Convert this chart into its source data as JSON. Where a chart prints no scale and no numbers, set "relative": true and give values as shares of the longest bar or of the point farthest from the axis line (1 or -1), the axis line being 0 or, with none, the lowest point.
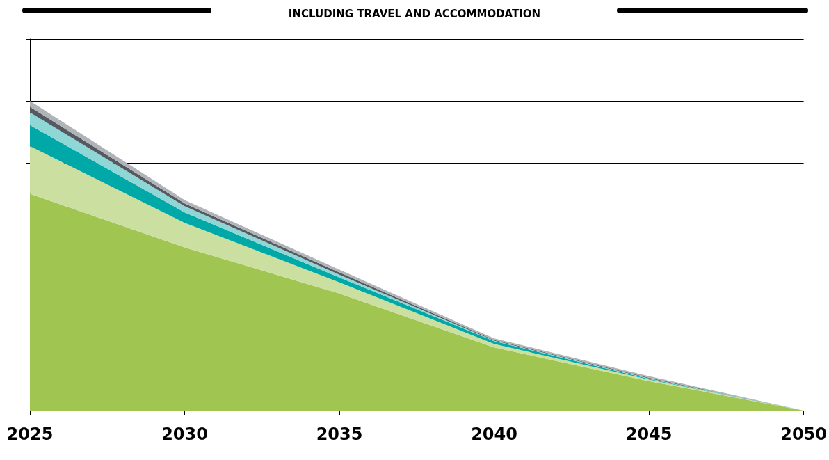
{
  "chart_data": {
    "type": "area",
    "title": "INCLUDING TRAVEL AND ACCOMMODATION",
    "categories": [
      "2025",
      "2030",
      "2035",
      "2040",
      "2045",
      "2050"
    ],
    "relative": true,
    "stacked": true,
    "grid": "y",
    "series": [
      {
        "color": "#a0c550",
        "values": [
          0.7,
          0.527,
          0.378,
          0.204,
          0.095,
          0
        ]
      },
      {
        "color": "#cbe0a0",
        "values": [
          0.154,
          0.079,
          0.036,
          0.011,
          0.005,
          0
        ]
      },
      {
        "color": "#00a8a8",
        "values": [
          0.068,
          0.034,
          0.016,
          0.009,
          0.002,
          0
        ]
      },
      {
        "color": "#8fd6d6",
        "values": [
          0.041,
          0.02,
          0.009,
          0.002,
          0.002,
          0
        ]
      },
      {
        "color": "#555a60",
        "values": [
          0.018,
          0.009,
          0.007,
          0.002,
          0.002,
          0
        ]
      },
      {
        "color": "#b0b4b8",
        "values": [
          0.019,
          0.011,
          0.009,
          0.005,
          0.005,
          0
        ]
      }
    ]
  }
}
